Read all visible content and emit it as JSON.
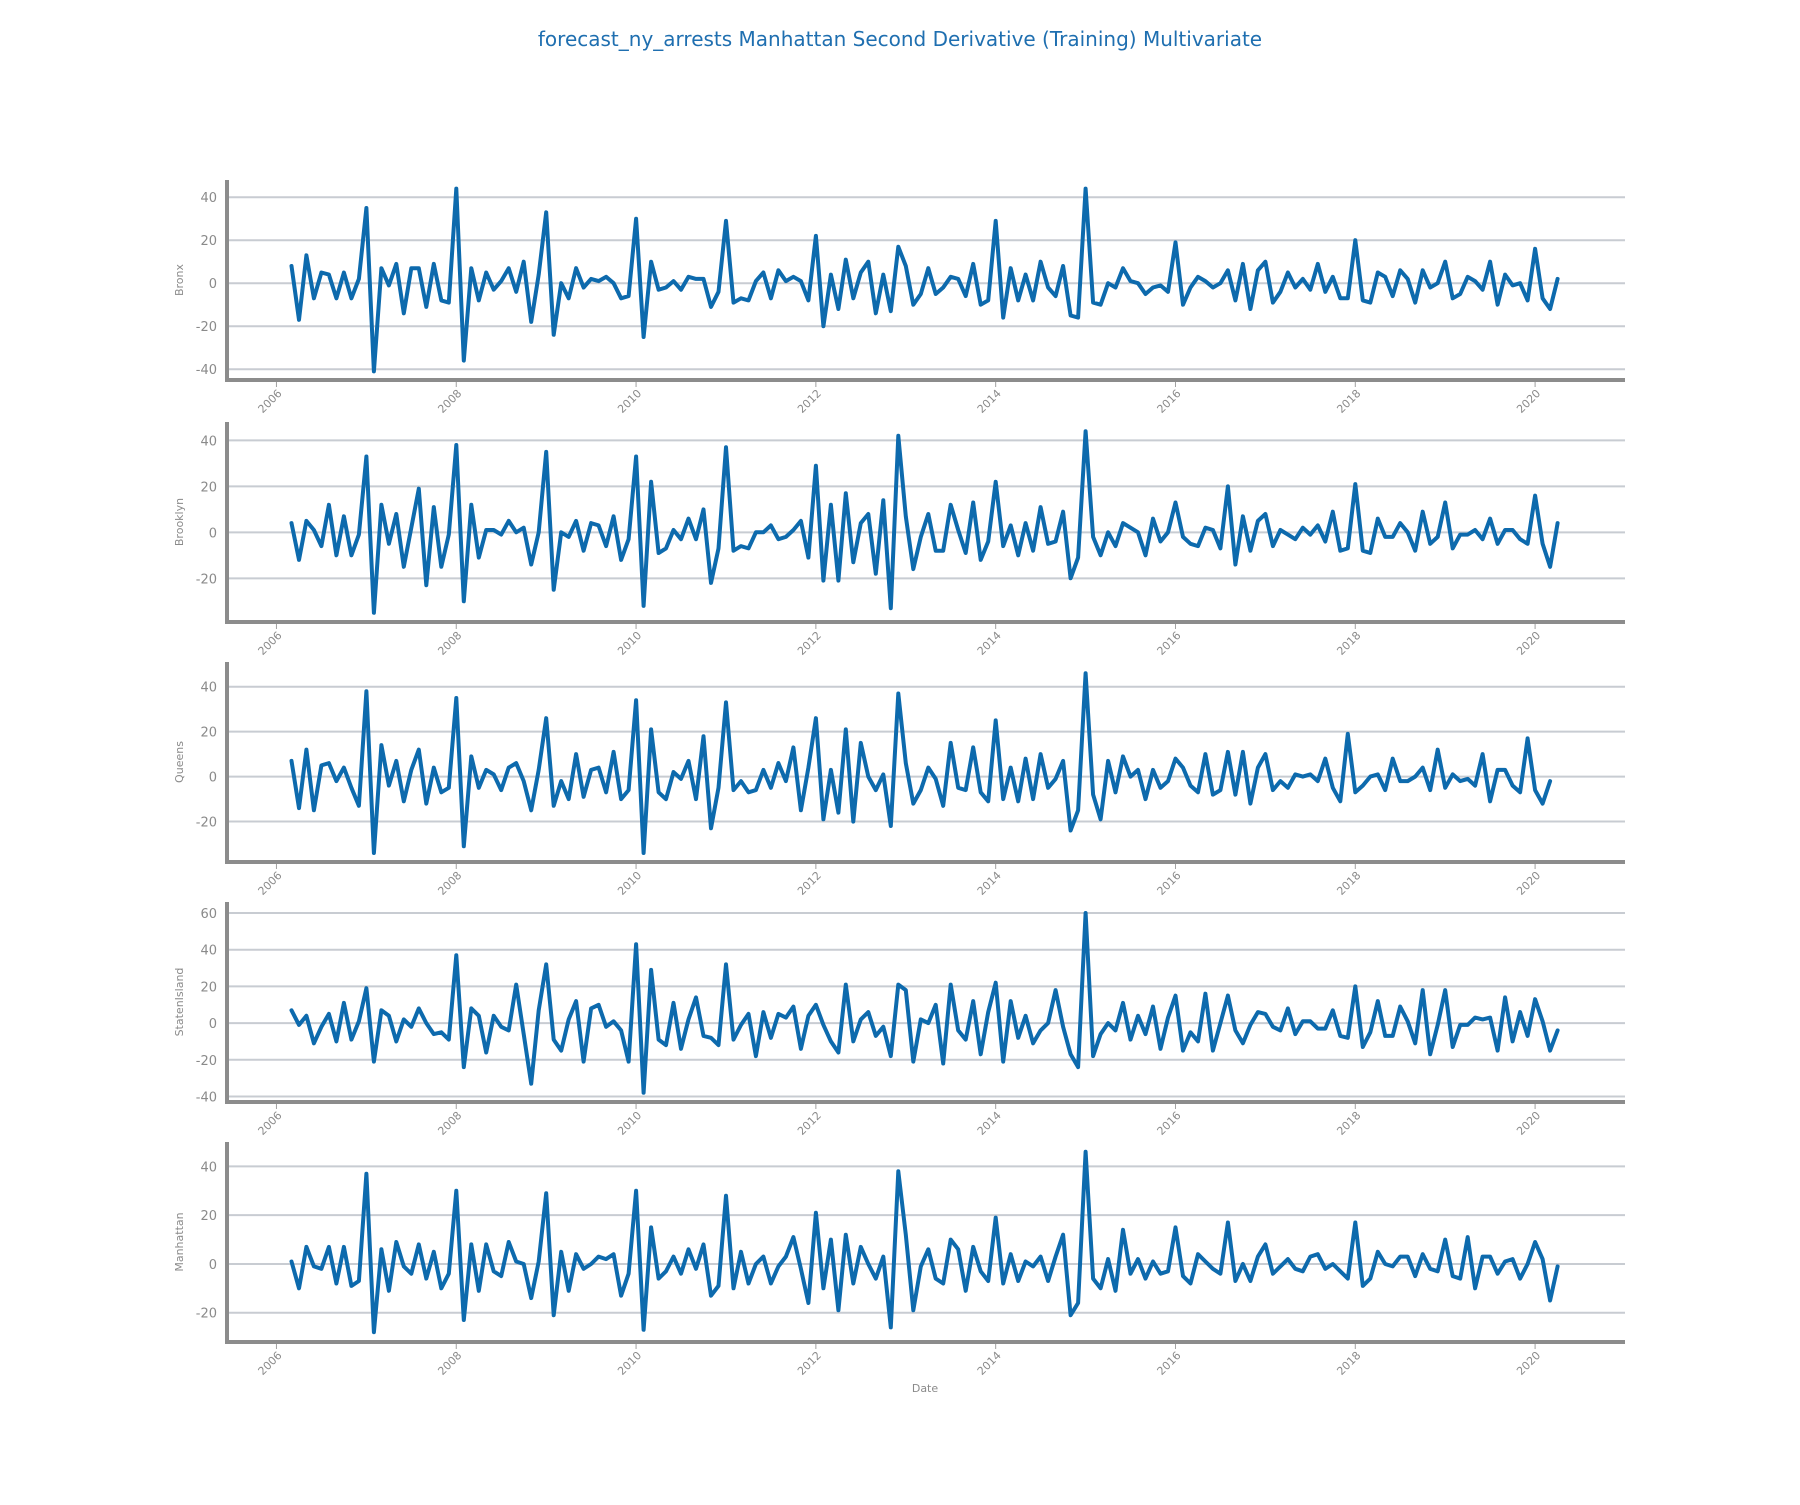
{
  "title": "forecast_ny_arrests Manhattan Second Derivative (Training) Multivariate",
  "colors": {
    "series": "#0d6aad",
    "title": "#1f6fb0"
  },
  "chart_data": {
    "type": "line",
    "title": "forecast_ny_arrests Manhattan Second Derivative (Training) Multivariate",
    "xlabel": "Date",
    "xlim": [
      2005.45,
      2021.0
    ],
    "x_start": 2006.167,
    "x_step": 0.08333,
    "x_ticks": [
      "2006",
      "2008",
      "2010",
      "2012",
      "2014",
      "2016",
      "2018",
      "2020"
    ],
    "x_tick_values": [
      2006,
      2008,
      2010,
      2012,
      2014,
      2016,
      2018,
      2020
    ],
    "panels": [
      {
        "name": "Bronx",
        "ylabel": "Bronx",
        "ylim": [
          -45,
          48
        ],
        "yticks": [
          40,
          20,
          0,
          -20,
          -40
        ],
        "values": [
          8,
          -17,
          13,
          -7,
          5,
          4,
          -7,
          5,
          -7,
          2,
          35,
          -41,
          7,
          -1,
          9,
          -14,
          7,
          7,
          -11,
          9,
          -8,
          -9,
          44,
          -36,
          7,
          -8,
          5,
          -3,
          1,
          7,
          -4,
          10,
          -18,
          4,
          33,
          -24,
          0,
          -7,
          7,
          -2,
          2,
          1,
          3,
          0,
          -7,
          -6,
          30,
          -25,
          10,
          -3,
          -2,
          1,
          -3,
          3,
          2,
          2,
          -11,
          -4,
          29,
          -9,
          -7,
          -8,
          1,
          5,
          -7,
          6,
          1,
          3,
          1,
          -8,
          22,
          -20,
          4,
          -12,
          11,
          -7,
          5,
          10,
          -14,
          4,
          -13,
          17,
          8,
          -10,
          -5,
          7,
          -5,
          -2,
          3,
          2,
          -6,
          9,
          -10,
          -8,
          29,
          -16,
          7,
          -8,
          4,
          -8,
          10,
          -2,
          -6,
          8,
          -15,
          -16,
          44,
          -9,
          -10,
          0,
          -2,
          7,
          1,
          0,
          -5,
          -2,
          -1,
          -4,
          19,
          -10,
          -2,
          3,
          1,
          -2,
          0,
          6,
          -8,
          9,
          -12,
          6,
          10,
          -9,
          -4,
          5,
          -2,
          2,
          -3,
          9,
          -4,
          3,
          -7,
          -7,
          20,
          -8,
          -9,
          5,
          3,
          -6,
          6,
          2,
          -9,
          6,
          -2,
          0,
          10,
          -7,
          -5,
          3,
          1,
          -3,
          10,
          -10,
          4,
          -1,
          0,
          -8,
          16,
          -7,
          -12,
          2
        ]
      },
      {
        "name": "Brooklyn",
        "ylabel": "Brooklyn",
        "ylim": [
          -39,
          48
        ],
        "yticks": [
          40,
          20,
          0,
          -20
        ],
        "values": [
          4,
          -12,
          5,
          1,
          -6,
          12,
          -10,
          7,
          -10,
          -1,
          33,
          -35,
          12,
          -5,
          8,
          -15,
          2,
          19,
          -23,
          11,
          -15,
          -1,
          38,
          -30,
          12,
          -11,
          1,
          1,
          -1,
          5,
          0,
          2,
          -14,
          0,
          35,
          -25,
          0,
          -2,
          5,
          -8,
          4,
          3,
          -6,
          7,
          -12,
          -3,
          33,
          -32,
          22,
          -9,
          -7,
          1,
          -3,
          6,
          -3,
          10,
          -22,
          -7,
          37,
          -8,
          -6,
          -7,
          0,
          0,
          3,
          -3,
          -2,
          1,
          5,
          -11,
          29,
          -21,
          12,
          -21,
          17,
          -13,
          4,
          8,
          -18,
          14,
          -33,
          42,
          7,
          -16,
          -2,
          8,
          -8,
          -8,
          12,
          1,
          -9,
          13,
          -12,
          -4,
          22,
          -6,
          3,
          -10,
          4,
          -8,
          11,
          -5,
          -4,
          9,
          -20,
          -11,
          44,
          -2,
          -10,
          0,
          -6,
          4,
          2,
          0,
          -10,
          6,
          -4,
          0,
          13,
          -2,
          -5,
          -6,
          2,
          1,
          -7,
          20,
          -14,
          7,
          -8,
          5,
          8,
          -6,
          1,
          -1,
          -3,
          2,
          -1,
          3,
          -4,
          9,
          -8,
          -7,
          21,
          -8,
          -9,
          6,
          -2,
          -2,
          4,
          0,
          -8,
          9,
          -5,
          -2,
          13,
          -7,
          -1,
          -1,
          1,
          -3,
          6,
          -5,
          1,
          1,
          -3,
          -5,
          16,
          -5,
          -15,
          4
        ]
      },
      {
        "name": "Queens",
        "ylabel": "Queens",
        "ylim": [
          -38,
          51
        ],
        "yticks": [
          40,
          20,
          0,
          -20
        ],
        "values": [
          7,
          -14,
          12,
          -15,
          5,
          6,
          -2,
          4,
          -5,
          -13,
          38,
          -34,
          14,
          -4,
          7,
          -11,
          3,
          12,
          -12,
          4,
          -7,
          -5,
          35,
          -31,
          9,
          -5,
          3,
          1,
          -6,
          4,
          6,
          -2,
          -15,
          3,
          26,
          -13,
          -2,
          -10,
          10,
          -9,
          3,
          4,
          -7,
          11,
          -10,
          -6,
          34,
          -34,
          21,
          -7,
          -10,
          2,
          -1,
          7,
          -10,
          18,
          -23,
          -5,
          33,
          -6,
          -2,
          -7,
          -6,
          3,
          -5,
          6,
          -2,
          13,
          -15,
          4,
          26,
          -19,
          3,
          -16,
          21,
          -20,
          15,
          0,
          -6,
          1,
          -22,
          37,
          6,
          -12,
          -6,
          4,
          -1,
          -13,
          15,
          -5,
          -6,
          13,
          -7,
          -11,
          25,
          -10,
          4,
          -11,
          8,
          -10,
          10,
          -5,
          -1,
          7,
          -24,
          -15,
          46,
          -8,
          -19,
          7,
          -7,
          9,
          0,
          3,
          -10,
          3,
          -5,
          -2,
          8,
          4,
          -4,
          -7,
          10,
          -8,
          -6,
          11,
          -8,
          11,
          -12,
          4,
          10,
          -6,
          -2,
          -5,
          1,
          0,
          1,
          -2,
          8,
          -5,
          -11,
          19,
          -7,
          -4,
          0,
          1,
          -6,
          8,
          -2,
          -2,
          0,
          4,
          -6,
          12,
          -5,
          1,
          -2,
          -1,
          -4,
          10,
          -11,
          3,
          3,
          -4,
          -7,
          17,
          -6,
          -12,
          -2
        ]
      },
      {
        "name": "StatenIsland",
        "ylabel": "StatenIsland",
        "ylim": [
          -43,
          66
        ],
        "yticks": [
          60,
          40,
          20,
          0,
          -20,
          -40
        ],
        "values": [
          7,
          -1,
          4,
          -11,
          -2,
          5,
          -10,
          11,
          -9,
          1,
          19,
          -21,
          7,
          4,
          -10,
          2,
          -2,
          8,
          0,
          -6,
          -5,
          -9,
          37,
          -24,
          8,
          4,
          -16,
          4,
          -2,
          -4,
          21,
          -6,
          -33,
          7,
          32,
          -9,
          -15,
          2,
          12,
          -21,
          8,
          10,
          -2,
          1,
          -4,
          -21,
          43,
          -38,
          29,
          -9,
          -12,
          11,
          -14,
          2,
          14,
          -7,
          -8,
          -12,
          32,
          -9,
          -1,
          5,
          -18,
          6,
          -8,
          5,
          3,
          9,
          -14,
          4,
          10,
          -1,
          -10,
          -16,
          21,
          -10,
          2,
          6,
          -7,
          -2,
          -18,
          21,
          18,
          -21,
          2,
          0,
          10,
          -22,
          21,
          -4,
          -9,
          12,
          -17,
          6,
          22,
          -21,
          12,
          -8,
          4,
          -11,
          -4,
          0,
          18,
          -2,
          -17,
          -24,
          60,
          -18,
          -6,
          0,
          -4,
          11,
          -9,
          4,
          -6,
          9,
          -14,
          3,
          15,
          -15,
          -5,
          -10,
          16,
          -15,
          0,
          15,
          -4,
          -11,
          -1,
          6,
          5,
          -2,
          -4,
          8,
          -6,
          1,
          1,
          -3,
          -3,
          7,
          -7,
          -8,
          20,
          -13,
          -5,
          12,
          -7,
          -7,
          9,
          1,
          -11,
          18,
          -17,
          -1,
          18,
          -13,
          -1,
          -1,
          3,
          2,
          3,
          -15,
          14,
          -10,
          6,
          -7,
          13,
          1,
          -15,
          -4
        ]
      },
      {
        "name": "Manhattan",
        "ylabel": "Manhattan",
        "ylim": [
          -32,
          50
        ],
        "yticks": [
          40,
          20,
          0,
          -20
        ],
        "values": [
          1,
          -10,
          7,
          -1,
          -2,
          7,
          -8,
          7,
          -9,
          -7,
          37,
          -28,
          6,
          -11,
          9,
          -1,
          -4,
          8,
          -6,
          5,
          -10,
          -4,
          30,
          -23,
          8,
          -11,
          8,
          -3,
          -5,
          9,
          1,
          0,
          -14,
          1,
          29,
          -21,
          5,
          -11,
          4,
          -2,
          0,
          3,
          2,
          4,
          -13,
          -4,
          30,
          -27,
          15,
          -6,
          -3,
          3,
          -4,
          6,
          -2,
          8,
          -13,
          -9,
          28,
          -10,
          5,
          -8,
          0,
          3,
          -8,
          -1,
          3,
          11,
          -2,
          -16,
          21,
          -10,
          10,
          -19,
          12,
          -8,
          7,
          0,
          -6,
          3,
          -26,
          38,
          12,
          -19,
          -1,
          6,
          -6,
          -8,
          10,
          6,
          -11,
          7,
          -3,
          -7,
          19,
          -8,
          4,
          -7,
          1,
          -1,
          3,
          -7,
          3,
          12,
          -21,
          -16,
          46,
          -6,
          -10,
          2,
          -11,
          14,
          -4,
          2,
          -6,
          1,
          -4,
          -3,
          15,
          -5,
          -8,
          4,
          1,
          -2,
          -4,
          17,
          -7,
          0,
          -7,
          3,
          8,
          -4,
          -1,
          2,
          -2,
          -3,
          3,
          4,
          -2,
          0,
          -3,
          -6,
          17,
          -9,
          -6,
          5,
          0,
          -1,
          3,
          3,
          -5,
          4,
          -2,
          -3,
          10,
          -5,
          -6,
          11,
          -10,
          3,
          3,
          -4,
          1,
          2,
          -6,
          0,
          9,
          2,
          -15,
          -1
        ]
      }
    ]
  }
}
